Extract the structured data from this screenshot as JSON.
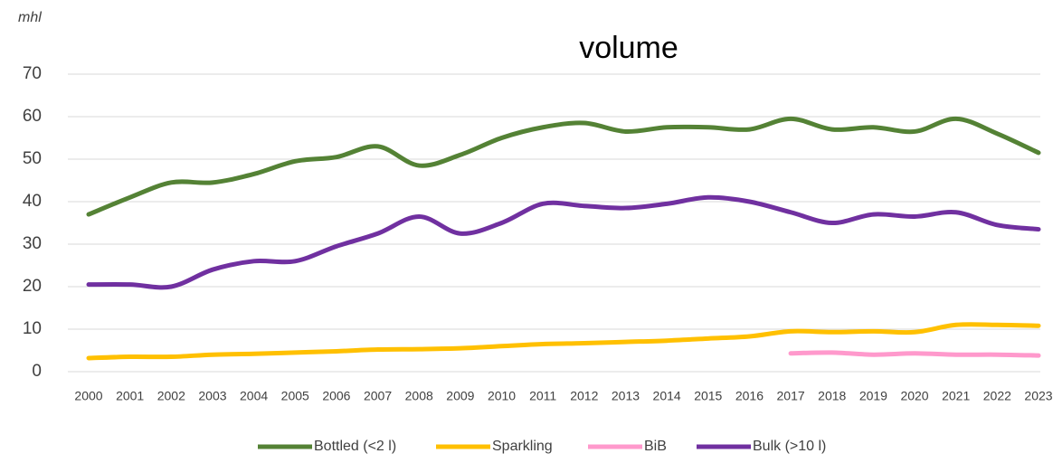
{
  "chart_data": {
    "type": "line",
    "title": "volume",
    "y_label": "mhl",
    "x": [
      "2000",
      "2001",
      "2002",
      "2003",
      "2004",
      "2005",
      "2006",
      "2007",
      "2008",
      "2009",
      "2010",
      "2011",
      "2012",
      "2013",
      "2014",
      "2015",
      "2016",
      "2017",
      "2018",
      "2019",
      "2020",
      "2021",
      "2022",
      "2023"
    ],
    "series": [
      {
        "name": "Bottled (<2 l)",
        "color": "#548235",
        "values": [
          37,
          41,
          44.5,
          44.5,
          46.5,
          49.5,
          50.5,
          53,
          48.5,
          51,
          55,
          57.5,
          58.5,
          56.5,
          57.5,
          57.5,
          57,
          59.5,
          57,
          57.5,
          56.5,
          59.5,
          56,
          51.5
        ]
      },
      {
        "name": "Sparkling",
        "color": "#ffc000",
        "values": [
          3.2,
          3.5,
          3.5,
          4,
          4.2,
          4.5,
          4.8,
          5.2,
          5.3,
          5.5,
          6,
          6.5,
          6.7,
          7,
          7.3,
          7.8,
          8.3,
          9.5,
          9.3,
          9.5,
          9.3,
          11,
          11,
          10.8
        ]
      },
      {
        "name": "BiB",
        "color": "#ff99cc",
        "values": [
          null,
          null,
          null,
          null,
          null,
          null,
          null,
          null,
          null,
          null,
          null,
          null,
          null,
          null,
          null,
          null,
          null,
          4.3,
          4.5,
          4,
          4.3,
          4,
          4,
          3.8
        ]
      },
      {
        "name": "Bulk (>10 l)",
        "color": "#7030a0",
        "values": [
          20.5,
          20.5,
          20,
          24,
          26,
          26,
          29.5,
          32.5,
          36.5,
          32.5,
          35,
          39.5,
          39,
          38.5,
          39.5,
          41,
          40,
          37.5,
          35,
          37,
          36.5,
          37.5,
          34.5,
          33.5
        ]
      }
    ],
    "ylim": [
      0,
      70
    ],
    "yticks": [
      0,
      10,
      20,
      30,
      40,
      50,
      60,
      70
    ],
    "grid": true
  }
}
